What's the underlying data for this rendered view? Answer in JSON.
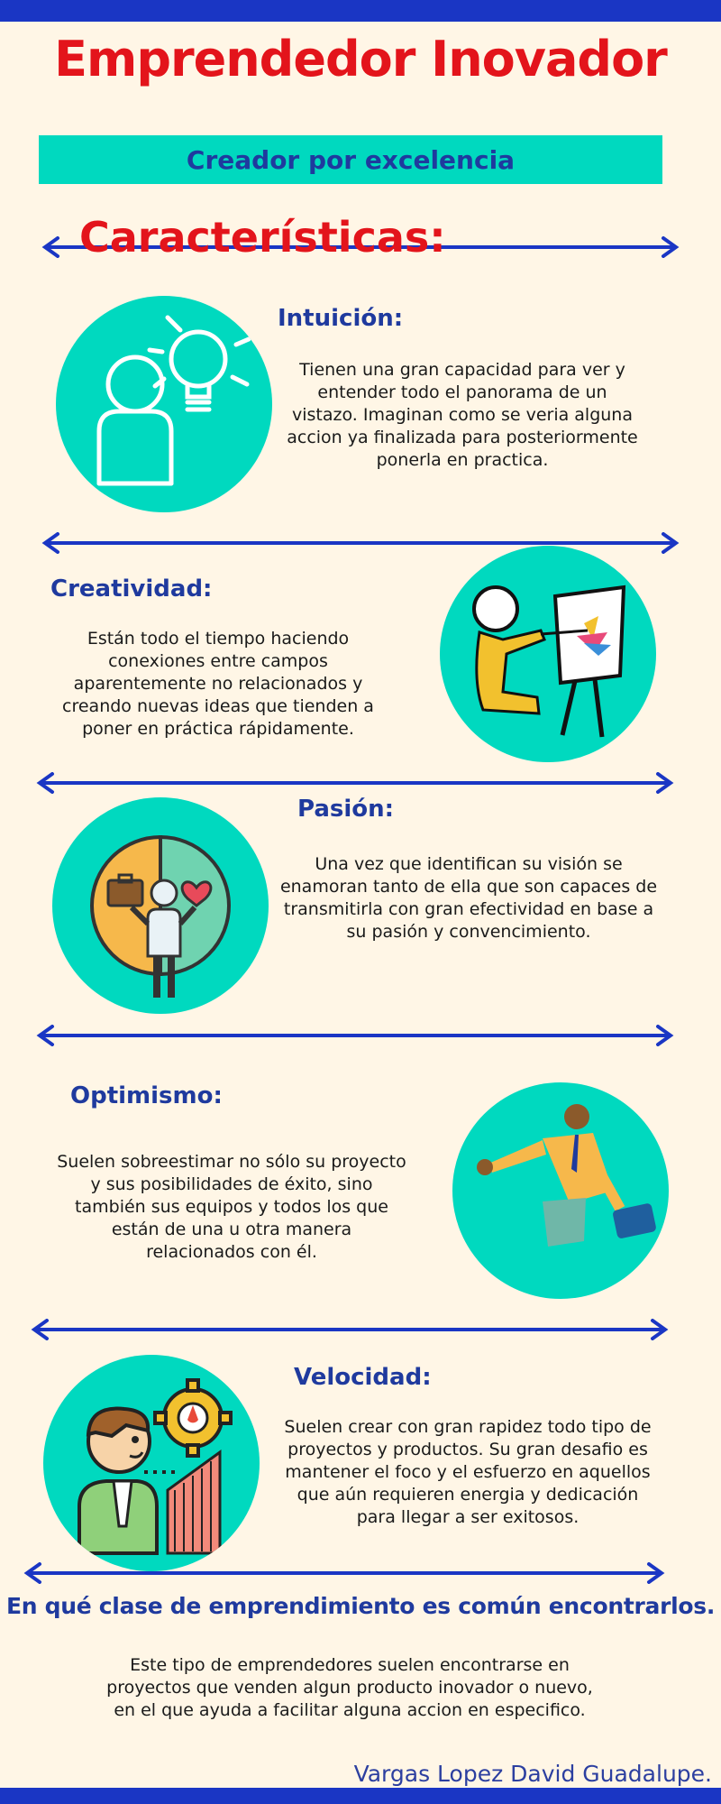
{
  "title": "Emprendedor Inovador",
  "subtitle": "Creador por excelencia",
  "characteristics_heading": "Características:",
  "colors": {
    "blue": "#1a36c4",
    "red": "#e3141b",
    "teal": "#00d9bf",
    "cream": "#fff6e6",
    "heading_blue": "#1f3a9e"
  },
  "sections": [
    {
      "heading": "Intuición:",
      "text": "Tienen una gran capacidad para ver y entender todo el panorama de un vistazo. Imaginan como se veria alguna accion ya finalizada para posteriormente ponerla en practica.",
      "icon": "person-lightbulb-icon"
    },
    {
      "heading": "Creatividad:",
      "text": "Están todo el tiempo haciendo conexiones entre campos aparentemente no relacionados y creando nuevas ideas que tienden a poner en práctica rápidamente.",
      "icon": "painter-easel-icon"
    },
    {
      "heading": "Pasión:",
      "text": "Una vez que identifican su visión se enamoran tanto de ella que son capaces de transmitirla con gran efectividad en base a su pasión y convencimiento.",
      "icon": "person-briefcase-heart-icon"
    },
    {
      "heading": "Optimismo:",
      "text": "Suelen sobreestimar no sólo su proyecto y sus posibilidades de éxito, sino también sus equipos y todos los que están de una u otra manera relacionados con él.",
      "icon": "businessman-briefcase-icon"
    },
    {
      "heading": "Velocidad:",
      "text": "Suelen crear con gran rapidez todo tipo de proyectos y productos. Su gran desafio es mantener el foco y el esfuerzo en aquellos que aún requieren energia y dedicación para llegar a ser exitosos.",
      "icon": "man-gear-chart-icon"
    }
  ],
  "question": "En qué clase de emprendimiento es común encontrarlos.",
  "answer": "Este tipo de emprendedores suelen encontrarse en proyectos que venden algun producto inovador o nuevo, en el que ayuda a facilitar alguna accion en especifico.",
  "author": "Vargas Lopez David Guadalupe."
}
